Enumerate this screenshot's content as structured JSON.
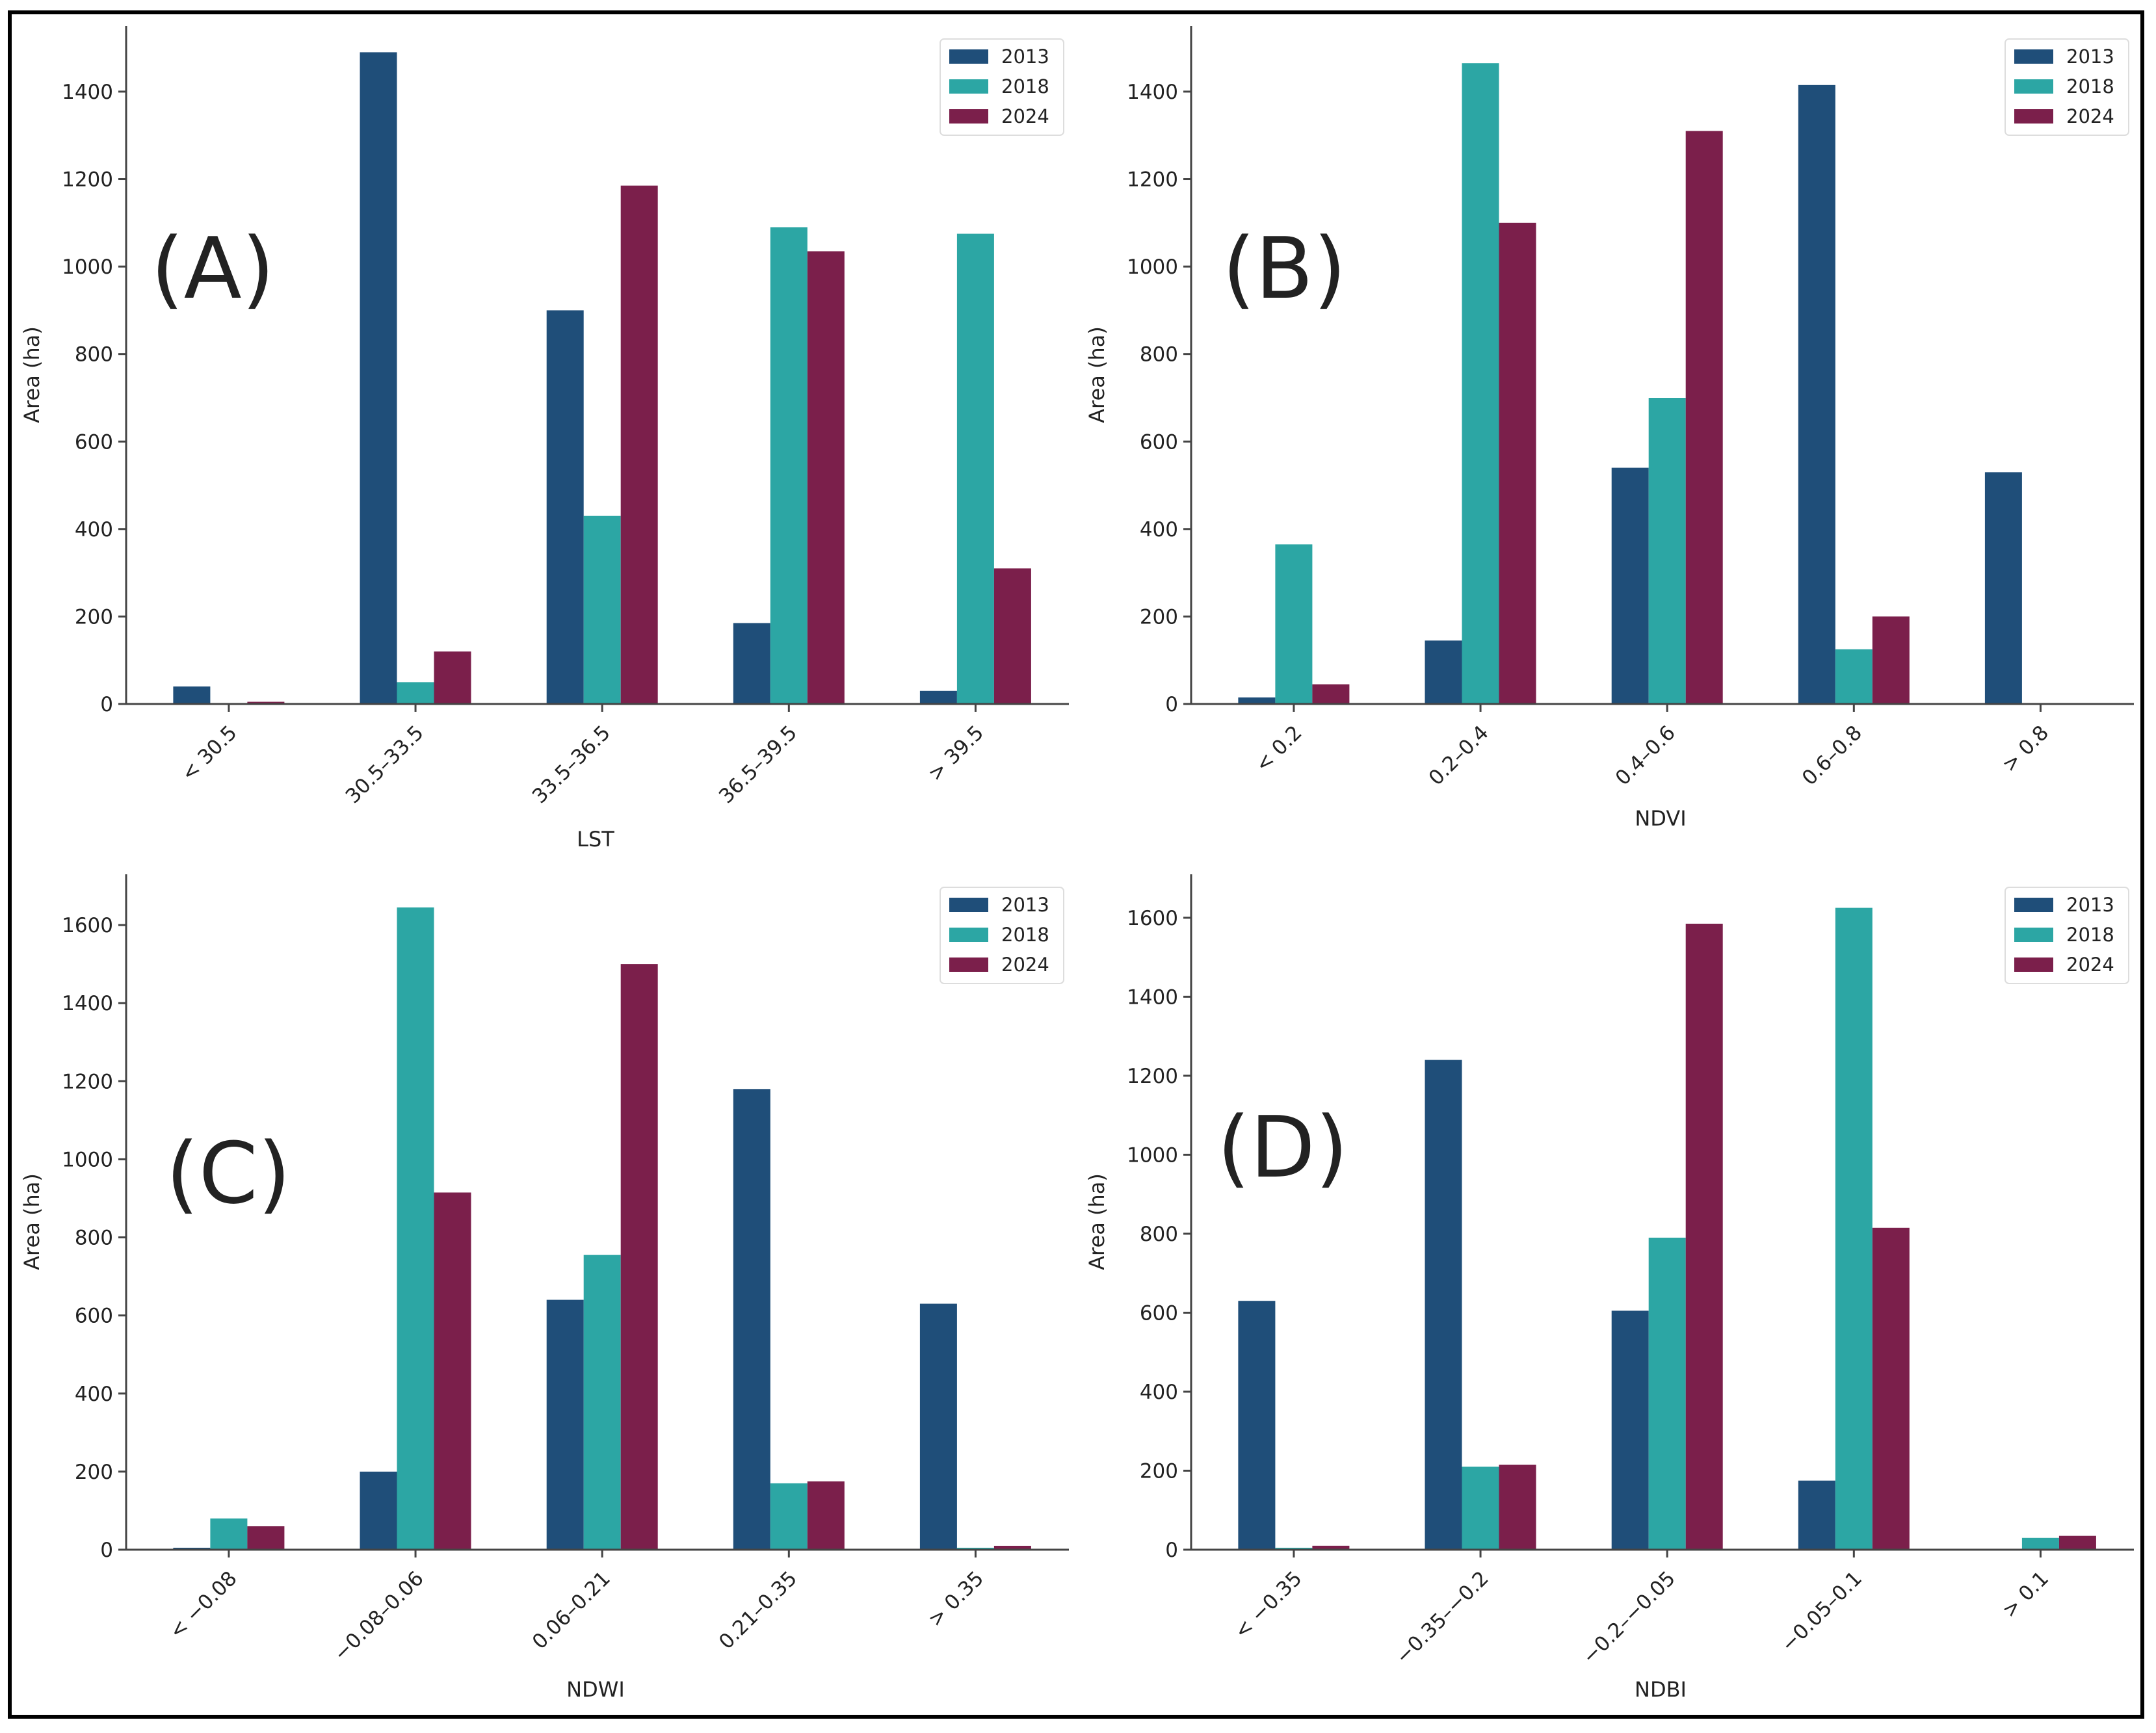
{
  "colors": {
    "2013": "#1f4e79",
    "2018": "#2ca6a4",
    "2024": "#7b1f4b",
    "axis": "#444444",
    "text": "#222222"
  },
  "chart_data": [
    {
      "panel": "(A)",
      "type": "bar",
      "title": "",
      "xlabel": "LST",
      "ylabel": "Area (ha)",
      "categories": [
        "< 30.5",
        "30.5–33.5",
        "33.5–36.5",
        "36.5–39.5",
        "> 39.5"
      ],
      "ylim": [
        0,
        1550
      ],
      "yticks": [
        0,
        200,
        400,
        600,
        800,
        1000,
        1200,
        1400
      ],
      "legend": "top-right",
      "grid": false,
      "series": [
        {
          "name": "2013",
          "color": "#1f4e79",
          "values": [
            40,
            1490,
            900,
            185,
            30
          ]
        },
        {
          "name": "2018",
          "color": "#2ca6a4",
          "values": [
            0,
            50,
            430,
            1090,
            1075
          ]
        },
        {
          "name": "2024",
          "color": "#7b1f4b",
          "values": [
            5,
            120,
            1185,
            1035,
            310
          ]
        }
      ]
    },
    {
      "panel": "(B)",
      "type": "bar",
      "title": "",
      "xlabel": "NDVI",
      "ylabel": "Area (ha)",
      "categories": [
        "< 0.2",
        "0.2–0.4",
        "0.4–0.6",
        "0.6–0.8",
        "> 0.8"
      ],
      "ylim": [
        0,
        1550
      ],
      "yticks": [
        0,
        200,
        400,
        600,
        800,
        1000,
        1200,
        1400
      ],
      "legend": "top-right",
      "grid": false,
      "series": [
        {
          "name": "2013",
          "color": "#1f4e79",
          "values": [
            15,
            145,
            540,
            1415,
            530
          ]
        },
        {
          "name": "2018",
          "color": "#2ca6a4",
          "values": [
            365,
            1465,
            700,
            125,
            0
          ]
        },
        {
          "name": "2024",
          "color": "#7b1f4b",
          "values": [
            45,
            1100,
            1310,
            200,
            0
          ]
        }
      ]
    },
    {
      "panel": "(C)",
      "type": "bar",
      "title": "",
      "xlabel": "NDWI",
      "ylabel": "Area (ha)",
      "categories": [
        "< −0.08",
        "−0.08–0.06",
        "0.06–0.21",
        "0.21–0.35",
        "> 0.35"
      ],
      "ylim": [
        0,
        1730
      ],
      "yticks": [
        0,
        200,
        400,
        600,
        800,
        1000,
        1200,
        1400,
        1600
      ],
      "legend": "top-right",
      "grid": false,
      "series": [
        {
          "name": "2013",
          "color": "#1f4e79",
          "values": [
            5,
            200,
            640,
            1180,
            630
          ]
        },
        {
          "name": "2018",
          "color": "#2ca6a4",
          "values": [
            80,
            1645,
            755,
            170,
            5
          ]
        },
        {
          "name": "2024",
          "color": "#7b1f4b",
          "values": [
            60,
            915,
            1500,
            175,
            10
          ]
        }
      ]
    },
    {
      "panel": "(D)",
      "type": "bar",
      "title": "",
      "xlabel": "NDBI",
      "ylabel": "Area (ha)",
      "categories": [
        "< −0.35",
        "−0.35–−0.2",
        "−0.2–−0.05",
        "−0.05–0.1",
        "> 0.1"
      ],
      "ylim": [
        0,
        1710
      ],
      "yticks": [
        0,
        200,
        400,
        600,
        800,
        1000,
        1200,
        1400,
        1600
      ],
      "legend": "top-right",
      "grid": false,
      "series": [
        {
          "name": "2013",
          "color": "#1f4e79",
          "values": [
            630,
            1240,
            605,
            175,
            0
          ]
        },
        {
          "name": "2018",
          "color": "#2ca6a4",
          "values": [
            5,
            210,
            790,
            1625,
            30
          ]
        },
        {
          "name": "2024",
          "color": "#7b1f4b",
          "values": [
            10,
            215,
            1585,
            815,
            35
          ]
        }
      ]
    }
  ]
}
